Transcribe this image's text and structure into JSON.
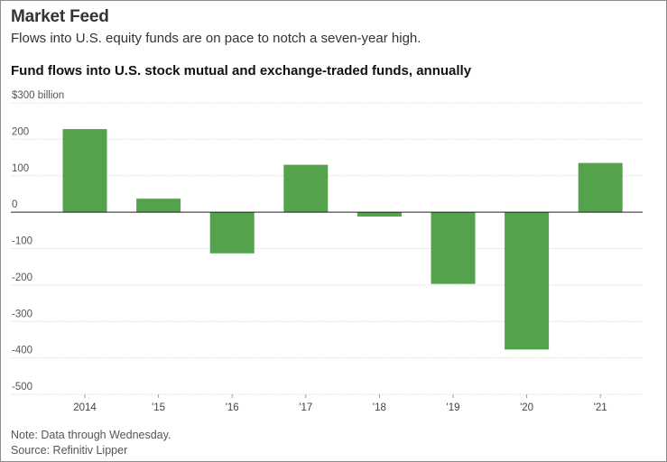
{
  "header": {
    "kicker": "Market Feed",
    "subtitle": "Flows into U.S. equity funds are on pace to notch a seven-year high."
  },
  "chart_data": {
    "type": "bar",
    "title": "Fund flows into U.S. stock mutual and exchange-traded funds, annually",
    "ylabel": "$300 billion",
    "xlabel": "",
    "categories": [
      "2014",
      "'15",
      "'16",
      "'17",
      "'18",
      "'19",
      "'20",
      "'21"
    ],
    "values": [
      228,
      37,
      -113,
      130,
      -12,
      -197,
      -377,
      135
    ],
    "ylim": [
      -500,
      300
    ],
    "yticks": [
      300,
      200,
      100,
      0,
      -100,
      -200,
      -300,
      -400,
      -500
    ],
    "ytick_labels": [
      "$300 billion",
      "200",
      "100",
      "0",
      "-100",
      "-200",
      "-300",
      "-400",
      "-500"
    ],
    "bar_color": "#54a24b",
    "grid": true
  },
  "footer": {
    "note": "Note: Data through Wednesday.",
    "source": "Source: Refinitiv Lipper"
  }
}
